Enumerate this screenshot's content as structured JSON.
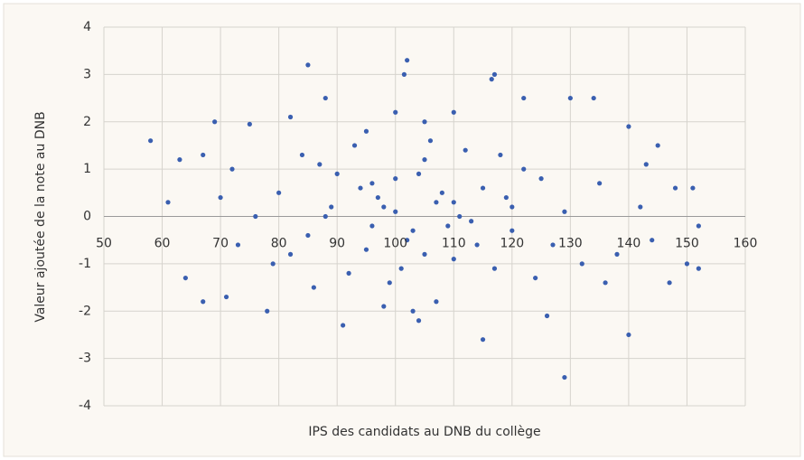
{
  "chart_data": {
    "type": "scatter",
    "xlabel": "IPS des candidats au DNB du collège",
    "ylabel": "Valeur ajoutée de la note au DNB",
    "color": "#3a5fb0",
    "grid": true,
    "xlim": [
      50,
      160
    ],
    "xticks": [
      50,
      60,
      70,
      80,
      90,
      100,
      110,
      120,
      130,
      140,
      150,
      160
    ],
    "ylim": [
      -4,
      4
    ],
    "yticks": [
      -4,
      -3,
      -2,
      -1,
      0,
      1,
      2,
      3,
      4
    ],
    "x": [
      58,
      85,
      102,
      101.5,
      117,
      116.5,
      129,
      140,
      115,
      91,
      78,
      67,
      152,
      150,
      152,
      151,
      67,
      69,
      75,
      134,
      130,
      122,
      88,
      63,
      61,
      64,
      71,
      104,
      126,
      147,
      145,
      140,
      82,
      95,
      100,
      105,
      110,
      98,
      103,
      107,
      80,
      85,
      90,
      95,
      100,
      105,
      110,
      115,
      120,
      125,
      82,
      87,
      92,
      97,
      102,
      107,
      112,
      117,
      122,
      127,
      84,
      89,
      94,
      99,
      104,
      109,
      114,
      119,
      124,
      129,
      76,
      79,
      86,
      93,
      96,
      101,
      106,
      111,
      118,
      132,
      70,
      73,
      135,
      138,
      142,
      144,
      148,
      72,
      136,
      143,
      98,
      103,
      108,
      113,
      100,
      105,
      110,
      96,
      88,
      120
    ],
    "values": [
      1.6,
      3.2,
      3.3,
      3.0,
      3.0,
      2.9,
      -3.4,
      -2.5,
      -2.6,
      -2.3,
      -2.0,
      -1.8,
      -1.1,
      -1.0,
      -0.2,
      0.6,
      1.3,
      2.0,
      1.95,
      2.5,
      2.5,
      2.5,
      2.5,
      1.2,
      0.3,
      -1.3,
      -1.7,
      -2.2,
      -2.1,
      -1.4,
      1.5,
      1.9,
      2.1,
      1.8,
      2.2,
      2.0,
      2.2,
      -1.9,
      -2.0,
      -1.8,
      0.5,
      -0.4,
      0.9,
      -0.7,
      0.1,
      1.2,
      -0.9,
      0.6,
      -0.3,
      0.8,
      -0.8,
      1.1,
      -1.2,
      0.4,
      -0.5,
      0.3,
      1.4,
      -1.1,
      1.0,
      -0.6,
      1.3,
      0.2,
      0.6,
      -1.4,
      0.9,
      -0.2,
      -0.6,
      0.4,
      -1.3,
      0.1,
      0.0,
      -1.0,
      -1.5,
      1.5,
      0.7,
      -1.1,
      1.6,
      0.0,
      1.3,
      -1.0,
      0.4,
      -0.6,
      0.7,
      -0.8,
      0.2,
      -0.5,
      0.6,
      1.0,
      -1.4,
      1.1,
      0.2,
      -0.3,
      0.5,
      -0.1,
      0.8,
      -0.8,
      0.3,
      -0.2,
      0.0,
      0.2
    ]
  }
}
